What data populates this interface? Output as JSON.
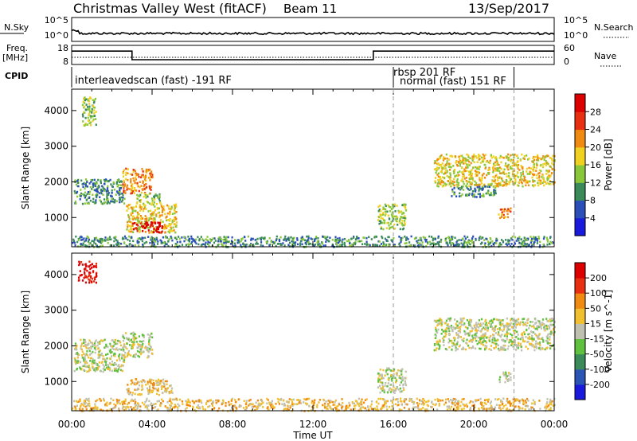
{
  "header": {
    "title": "Christmas Valley West (fitACF)",
    "beam": "Beam 11",
    "date": "13/Sep/2017"
  },
  "top_panels": {
    "nsky_label": "N.Sky",
    "nsearch_label": "N.Search",
    "nsky_ticks": [
      "10^5",
      "10^0"
    ],
    "nsky_right_ticks": [
      "10^5",
      "10^0"
    ],
    "freq_label": "Freq.",
    "freq_unit": "[MHz]",
    "freq_ticks": [
      "18",
      "8"
    ],
    "nave_label": "Nave",
    "nave_ticks": [
      "60",
      "0"
    ],
    "cpid_label": "CPID",
    "cpid_segments": [
      {
        "label": "interleavedscan (fast) -191 RF",
        "start_hour": 0,
        "end_hour": 16
      },
      {
        "label": "rbsp 201 RF",
        "start_hour": 16,
        "end_hour": 22
      },
      {
        "label": "normal (fast) 151 RF",
        "start_hour": 16.2,
        "end_hour": 22
      }
    ],
    "freq_steps": [
      {
        "start_hour": 0,
        "end_hour": 3,
        "level": 0.7
      },
      {
        "start_hour": 3,
        "end_hour": 15,
        "level": 0.25
      },
      {
        "start_hour": 15,
        "end_hour": 24,
        "level": 0.7
      }
    ]
  },
  "chart_data": [
    {
      "type": "heatmap",
      "name": "power-panel",
      "ylabel": "Slant Range [km]",
      "yticks": [
        "1000",
        "2000",
        "3000",
        "4000"
      ],
      "ylim": [
        180,
        4600
      ],
      "colorbar_label": "Power [dB]",
      "colorbar_ticks": [
        "4",
        "8",
        "12",
        "16",
        "20",
        "24",
        "28"
      ],
      "colorbar_colors": [
        "#1a1adc",
        "#2a4fb8",
        "#3a8a5a",
        "#8ac83a",
        "#f0d020",
        "#f08a10",
        "#e83010",
        "#dc0000"
      ],
      "dashed_lines_hours": [
        16,
        22
      ],
      "echo_regions": [
        {
          "x0": 0.5,
          "x1": 1.2,
          "y0": 3600,
          "y1": 4400,
          "level": 3
        },
        {
          "x0": 0.1,
          "x1": 2.6,
          "y0": 1400,
          "y1": 2100,
          "level": 2
        },
        {
          "x0": 2.5,
          "x1": 4.0,
          "y0": 1700,
          "y1": 2400,
          "level": 5
        },
        {
          "x0": 3.2,
          "x1": 4.4,
          "y0": 1400,
          "y1": 1700,
          "level": 3
        },
        {
          "x0": 2.7,
          "x1": 5.2,
          "y0": 600,
          "y1": 1400,
          "level": 4
        },
        {
          "x0": 2.9,
          "x1": 4.5,
          "y0": 600,
          "y1": 900,
          "level": 7
        },
        {
          "x0": 15.2,
          "x1": 16.6,
          "y0": 700,
          "y1": 1400,
          "level": 3
        },
        {
          "x0": 18.0,
          "x1": 24.0,
          "y0": 1900,
          "y1": 2800,
          "level": 4
        },
        {
          "x0": 18.8,
          "x1": 21.2,
          "y0": 1600,
          "y1": 1900,
          "level": 2
        },
        {
          "x0": 21.2,
          "x1": 21.8,
          "y0": 1000,
          "y1": 1300,
          "level": 5
        },
        {
          "x0": 0.0,
          "x1": 24.0,
          "y0": 200,
          "y1": 500,
          "level": 2
        }
      ]
    },
    {
      "type": "heatmap",
      "name": "velocity-panel",
      "ylabel": "Slant Range [km]",
      "yticks": [
        "1000",
        "2000",
        "3000",
        "4000"
      ],
      "ylim": [
        180,
        4600
      ],
      "colorbar_label": "Velocity [m s^-1]",
      "colorbar_ticks": [
        "200",
        "100",
        "50",
        "15",
        "-15",
        "-50",
        "-100",
        "-200"
      ],
      "colorbar_colors": [
        "#1a1adc",
        "#2a55b4",
        "#3a8a5a",
        "#60c040",
        "#c0c0b0",
        "#f0c030",
        "#f08a10",
        "#e83010",
        "#dc0000"
      ],
      "dashed_lines_hours": [
        16,
        22
      ],
      "echo_regions": [
        {
          "x0": 0.3,
          "x1": 1.2,
          "y0": 3800,
          "y1": 4400,
          "level": 8
        },
        {
          "x0": 0.1,
          "x1": 2.6,
          "y0": 1300,
          "y1": 2200,
          "level": 4
        },
        {
          "x0": 2.5,
          "x1": 4.0,
          "y0": 1700,
          "y1": 2400,
          "level": 4
        },
        {
          "x0": 2.7,
          "x1": 5.0,
          "y0": 650,
          "y1": 1100,
          "level": 5
        },
        {
          "x0": 15.2,
          "x1": 16.6,
          "y0": 700,
          "y1": 1400,
          "level": 4
        },
        {
          "x0": 18.0,
          "x1": 24.0,
          "y0": 1900,
          "y1": 2800,
          "level": 4
        },
        {
          "x0": 21.2,
          "x1": 21.8,
          "y0": 1000,
          "y1": 1300,
          "level": 4
        },
        {
          "x0": 0.0,
          "x1": 24.0,
          "y0": 200,
          "y1": 550,
          "level": 5
        }
      ]
    }
  ],
  "x_axis": {
    "label": "Time UT",
    "ticks": [
      "00:00",
      "04:00",
      "08:00",
      "12:00",
      "16:00",
      "20:00",
      "00:00"
    ],
    "xlim_hours": [
      0,
      24
    ]
  }
}
